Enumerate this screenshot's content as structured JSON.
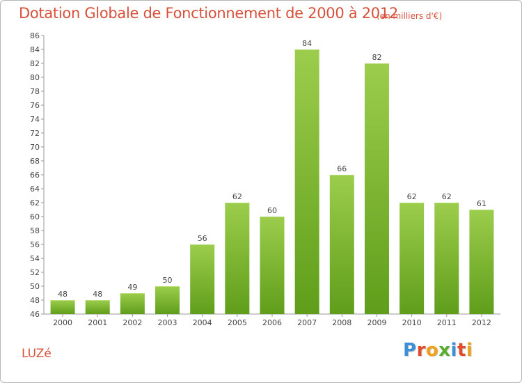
{
  "title": "Dotation Globale de Fonctionnement de 2000 à 2012",
  "subtitle": "(en milliers d'€)",
  "commune": "LUZé",
  "logo": {
    "text": "Proxiti",
    "letters": [
      {
        "ch": "P",
        "color": "#3d8fd6"
      },
      {
        "ch": "r",
        "color": "#e24b2c"
      },
      {
        "ch": "o",
        "color": "#f0a11b"
      },
      {
        "ch": "x",
        "color": "#5aae2e"
      },
      {
        "ch": "i",
        "color": "#3d8fd6"
      },
      {
        "ch": "t",
        "color": "#e24b2c"
      },
      {
        "ch": "i",
        "color": "#f0a11b"
      }
    ]
  },
  "chart_data": {
    "type": "bar",
    "categories": [
      "2000",
      "2001",
      "2002",
      "2003",
      "2004",
      "2005",
      "2006",
      "2007",
      "2008",
      "2009",
      "2010",
      "2011",
      "2012"
    ],
    "values": [
      48,
      48,
      49,
      50,
      56,
      62,
      60,
      84,
      66,
      82,
      62,
      62,
      61
    ],
    "title": "Dotation Globale de Fonctionnement de 2000 à 2012",
    "subtitle": "(en milliers d'€)",
    "ylim": [
      46,
      86
    ],
    "ytick_step": 2,
    "grid": false,
    "bar_color_top": "#9ccd4c",
    "bar_color_bottom": "#5f9e1a"
  }
}
